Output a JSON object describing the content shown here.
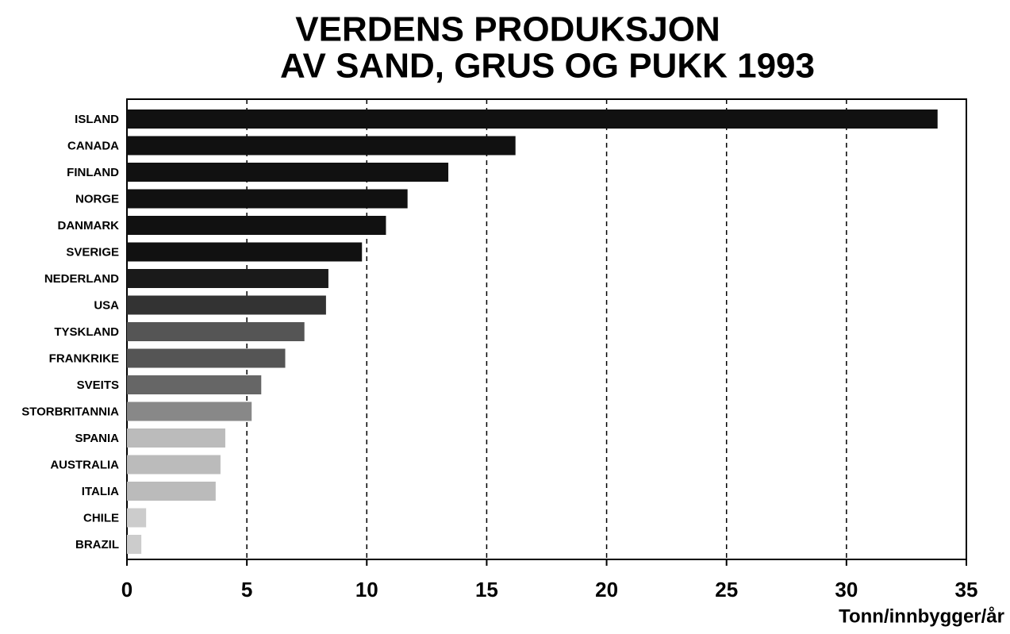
{
  "chart_data": {
    "type": "hbar",
    "title": [
      "VERDENS PRODUKSJON",
      "AV SAND, GRUS OG PUKK 1993"
    ],
    "x_label": "Tonn/innbygger/år",
    "categories": [
      "ISLAND",
      "CANADA",
      "FINLAND",
      "NORGE",
      "DANMARK",
      "SVERIGE",
      "NEDERLAND",
      "USA",
      "TYSKLAND",
      "FRANKRIKE",
      "SVEITS",
      "STORBRITANNIA",
      "SPANIA",
      "AUSTRALIA",
      "ITALIA",
      "CHILE",
      "BRAZIL"
    ],
    "values": [
      33.8,
      16.2,
      13.4,
      11.7,
      10.8,
      9.8,
      8.4,
      8.3,
      7.4,
      6.6,
      5.6,
      5.2,
      4.1,
      3.9,
      3.7,
      0.8,
      0.6
    ],
    "colors": [
      "#111111",
      "#111111",
      "#111111",
      "#111111",
      "#111111",
      "#111111",
      "#1a1a1a",
      "#333333",
      "#555555",
      "#555555",
      "#666666",
      "#888888",
      "#bbbbbb",
      "#bbbbbb",
      "#bbbbbb",
      "#cccccc",
      "#cccccc"
    ],
    "xlim": [
      0,
      35
    ],
    "xticks": [
      0,
      5,
      10,
      15,
      20,
      25,
      30,
      35
    ],
    "grid": true
  }
}
